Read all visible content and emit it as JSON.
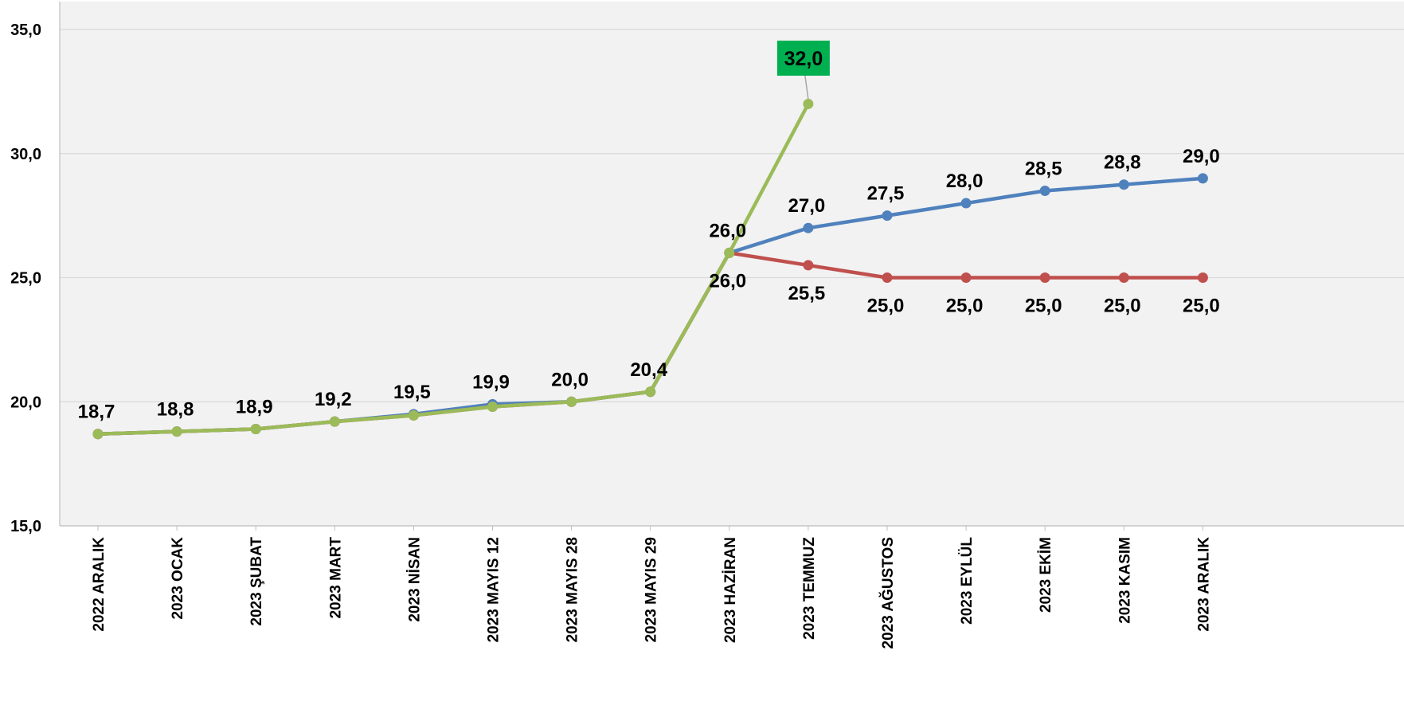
{
  "chart_data": {
    "type": "line",
    "categories": [
      "2022 ARALIK",
      "2023 OCAK",
      "2023 ŞUBAT",
      "2023 MART",
      "2023 NİSAN",
      "2023 MAYIS 12",
      "2023 MAYIS 28",
      "2023 MAYIS 29",
      "2023 HAZİRAN",
      "2023 TEMMUZ",
      "2023 AĞUSTOS",
      "2023 EYLÜL",
      "2023 EKİM",
      "2023 KASIM",
      "2023 ARALIK"
    ],
    "y_tick_labels": [
      "15,0",
      "20,0",
      "25,0",
      "30,0",
      "35,0"
    ],
    "ylim": [
      15,
      35
    ],
    "yticks": [
      15,
      20,
      25,
      30,
      35
    ],
    "grid": true,
    "legend": "none",
    "series": [
      {
        "color": "#4F81BD",
        "values": [
          18.7,
          18.8,
          18.9,
          19.2,
          19.5,
          19.9,
          20.0,
          20.4,
          26.0,
          27.0,
          27.5,
          28.0,
          28.5,
          28.75,
          29.0
        ],
        "labels": [
          "18,7",
          "18,8",
          "18,9",
          "19,2",
          "19,5",
          "19,9",
          "20,0",
          "20,4",
          "26,0",
          "27,0",
          "27,5",
          "28,0",
          "28,5",
          "28,8",
          "29,0"
        ],
        "label_position": "above"
      },
      {
        "color": "#C0504D",
        "values": [
          18.7,
          18.8,
          18.9,
          19.2,
          19.45,
          19.8,
          20.0,
          20.4,
          26.0,
          25.5,
          25.0,
          25.0,
          25.0,
          25.0,
          25.0
        ],
        "labels": [
          "",
          "",
          "",
          "",
          "",
          "",
          "",
          "",
          "26,0",
          "25,5",
          "25,0",
          "25,0",
          "25,0",
          "25,0",
          "25,0"
        ],
        "label_position": "below"
      },
      {
        "color": "#9BBB59",
        "values": [
          18.7,
          18.8,
          18.9,
          19.2,
          19.45,
          19.8,
          20.0,
          20.4,
          26.0,
          32.0,
          null,
          null,
          null,
          null,
          null
        ],
        "labels": [
          "",
          "",
          "",
          "",
          "",
          "",
          "",
          "",
          "",
          "",
          "",
          "",
          "",
          "",
          ""
        ],
        "label_position": "none"
      }
    ],
    "callout": {
      "text": "32,0",
      "series_index": 2,
      "point_index": 9,
      "background": "#00B050"
    }
  }
}
